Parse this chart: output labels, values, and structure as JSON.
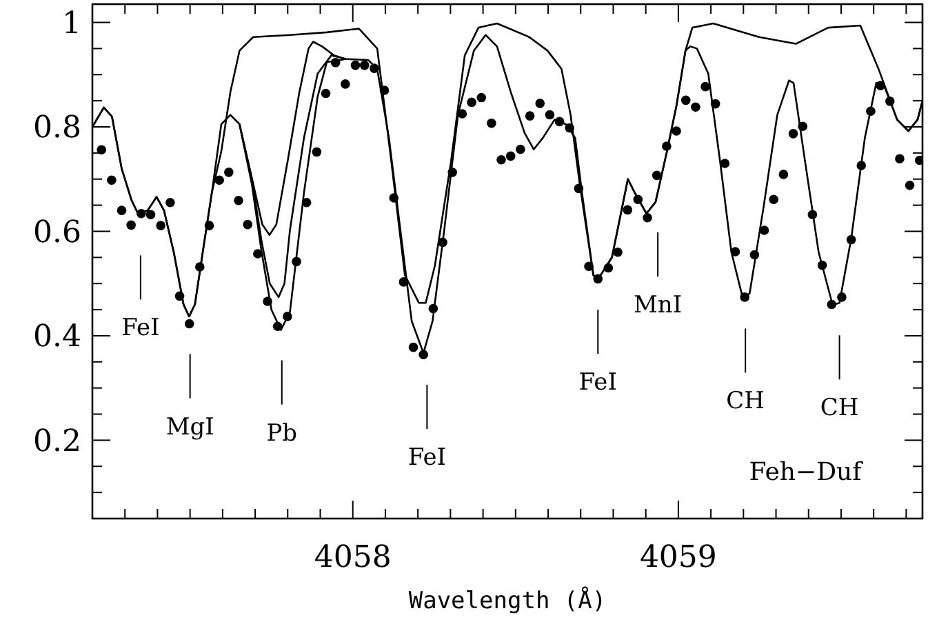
{
  "chart_data": {
    "type": "line",
    "xlabel": "Wavelength (Å)",
    "xlim": [
      4057.2,
      4059.75
    ],
    "xticks": [
      {
        "value": 4057.3,
        "label": null
      },
      {
        "value": 4057.4,
        "label": null
      },
      {
        "value": 4057.5,
        "label": null
      },
      {
        "value": 4057.6,
        "label": null
      },
      {
        "value": 4057.7,
        "label": null
      },
      {
        "value": 4057.8,
        "label": null
      },
      {
        "value": 4057.9,
        "label": null
      },
      4058,
      {
        "value": 4058.1,
        "label": null
      },
      {
        "value": 4058.2,
        "label": null
      },
      {
        "value": 4058.3,
        "label": null
      },
      {
        "value": 4058.4,
        "label": null
      },
      {
        "value": 4058.5,
        "label": null
      },
      {
        "value": 4058.6,
        "label": null
      },
      {
        "value": 4058.7,
        "label": null
      },
      {
        "value": 4058.8,
        "label": null
      },
      {
        "value": 4058.9,
        "label": null
      },
      4059,
      {
        "value": 4059.1,
        "label": null
      },
      {
        "value": 4059.2,
        "label": null
      },
      {
        "value": 4059.3,
        "label": null
      },
      {
        "value": 4059.4,
        "label": null
      },
      {
        "value": 4059.5,
        "label": null
      },
      {
        "value": 4059.6,
        "label": null
      },
      {
        "value": 4059.7,
        "label": null
      }
    ],
    "ylim": [
      0.05,
      1.035
    ],
    "yticks": [
      {
        "value": 0.05,
        "label": null
      },
      {
        "value": 0.1,
        "label": null
      },
      {
        "value": 0.15,
        "label": null
      },
      0.2,
      {
        "value": 0.25,
        "label": null
      },
      {
        "value": 0.3,
        "label": null
      },
      {
        "value": 0.35,
        "label": null
      },
      0.4,
      {
        "value": 0.45,
        "label": null
      },
      {
        "value": 0.5,
        "label": null
      },
      {
        "value": 0.55,
        "label": null
      },
      0.6,
      {
        "value": 0.65,
        "label": null
      },
      {
        "value": 0.7,
        "label": null
      },
      {
        "value": 0.75,
        "label": null
      },
      0.8,
      {
        "value": 0.85,
        "label": null
      },
      {
        "value": 0.9,
        "label": null
      },
      {
        "value": 0.95,
        "label": null
      },
      1
    ],
    "grid": false,
    "line_style": "solid",
    "series": [
      {
        "color": "#000000",
        "x": [
          4057.2,
          4057.235,
          4057.26,
          4057.29,
          4057.32,
          4057.34,
          4057.37,
          4057.397,
          4057.42,
          4057.45,
          4057.48,
          4057.497,
          4057.515,
          4057.539,
          4057.567,
          4057.596,
          4057.624,
          4057.652,
          4057.694,
          4057.807,
          4057.92,
          4058.019,
          4058.075,
          4058.118,
          4058.16,
          4058.203,
          4058.224,
          4058.252,
          4058.302,
          4058.344,
          4058.386,
          4058.443,
          4058.542,
          4058.598,
          4058.641,
          4058.669,
          4058.697,
          4058.739,
          4058.753,
          4058.796,
          4058.845,
          4058.866,
          4058.902,
          4058.93,
          4058.965,
          4058.994,
          4059.022,
          4059.043,
          4059.107,
          4059.248,
          4059.361,
          4059.46,
          4059.559,
          4059.615,
          4059.672,
          4059.707,
          4059.735,
          4059.75
        ],
        "values": [
          0.8,
          0.837,
          0.82,
          0.72,
          0.66,
          0.634,
          0.64,
          0.666,
          0.64,
          0.56,
          0.46,
          0.437,
          0.46,
          0.56,
          0.674,
          0.753,
          0.867,
          0.946,
          0.972,
          0.976,
          0.981,
          0.988,
          0.95,
          0.735,
          0.516,
          0.463,
          0.463,
          0.534,
          0.735,
          0.937,
          0.99,
          0.998,
          0.972,
          0.946,
          0.911,
          0.823,
          0.691,
          0.516,
          0.508,
          0.55,
          0.7,
          0.674,
          0.634,
          0.656,
          0.753,
          0.84,
          0.946,
          0.99,
          0.998,
          0.972,
          0.959,
          0.99,
          0.994,
          0.911,
          0.814,
          0.792,
          0.814,
          0.85
        ]
      },
      {
        "color": "#000000",
        "x": [
          4057.2,
          4057.235,
          4057.26,
          4057.29,
          4057.32,
          4057.34,
          4057.37,
          4057.397,
          4057.42,
          4057.45,
          4057.48,
          4057.497,
          4057.515,
          4057.539,
          4057.567,
          4057.596,
          4057.624,
          4057.652,
          4057.694,
          4057.722,
          4057.744,
          4057.765,
          4057.8,
          4057.836,
          4057.864,
          4057.878,
          4057.906,
          4057.942,
          4057.977,
          4058.047,
          4058.075,
          4058.111,
          4058.146,
          4058.181,
          4058.217,
          4058.245,
          4058.281,
          4058.323,
          4058.372,
          4058.408,
          4058.443,
          4058.485,
          4058.528,
          4058.556,
          4058.584,
          4058.62,
          4058.655,
          4058.683,
          4058.704,
          4058.739,
          4058.753,
          4058.796,
          4058.845,
          4058.866,
          4058.902,
          4058.93,
          4058.965,
          4058.994,
          4059.022,
          4059.036,
          4059.057,
          4059.092,
          4059.128,
          4059.163,
          4059.198,
          4059.219,
          4059.262,
          4059.304,
          4059.34,
          4059.354,
          4059.389,
          4059.431,
          4059.474,
          4059.495,
          4059.531,
          4059.573,
          4059.608,
          4059.629,
          4059.672,
          4059.707,
          4059.735,
          4059.75
        ],
        "values": [
          0.8,
          0.837,
          0.82,
          0.72,
          0.66,
          0.634,
          0.64,
          0.666,
          0.64,
          0.56,
          0.46,
          0.437,
          0.46,
          0.56,
          0.674,
          0.805,
          0.823,
          0.805,
          0.691,
          0.613,
          0.593,
          0.613,
          0.735,
          0.867,
          0.95,
          0.963,
          0.954,
          0.937,
          0.93,
          0.928,
          0.911,
          0.779,
          0.603,
          0.428,
          0.367,
          0.428,
          0.603,
          0.823,
          0.946,
          0.976,
          0.954,
          0.867,
          0.788,
          0.757,
          0.779,
          0.814,
          0.805,
          0.779,
          0.674,
          0.516,
          0.508,
          0.55,
          0.7,
          0.674,
          0.634,
          0.656,
          0.753,
          0.84,
          0.946,
          0.954,
          0.95,
          0.902,
          0.735,
          0.56,
          0.472,
          0.481,
          0.647,
          0.823,
          0.889,
          0.884,
          0.735,
          0.56,
          0.459,
          0.463,
          0.586,
          0.779,
          0.884,
          0.884,
          0.814,
          0.792,
          0.814,
          0.85
        ]
      },
      {
        "color": "#000000",
        "x": [
          4057.652,
          4057.69,
          4057.72,
          4057.745,
          4057.772,
          4057.79,
          4057.807,
          4057.85,
          4057.892,
          4057.934,
          4057.977
        ],
        "values": [
          0.805,
          0.7,
          0.58,
          0.5,
          0.474,
          0.5,
          0.603,
          0.779,
          0.902,
          0.937,
          0.93
        ]
      },
      {
        "color": "#000000",
        "x": [
          4057.652,
          4057.69,
          4057.72,
          4057.75,
          4057.779,
          4057.807,
          4057.85,
          4057.892,
          4057.92,
          4057.963,
          4057.977
        ],
        "values": [
          0.805,
          0.69,
          0.56,
          0.45,
          0.411,
          0.446,
          0.674,
          0.858,
          0.924,
          0.928,
          0.93
        ]
      },
      {
        "type": "scatter",
        "color": "#000000",
        "marker": "circle",
        "x": [
          4057.228,
          4057.259,
          4057.29,
          4057.319,
          4057.35,
          4057.379,
          4057.41,
          4057.439,
          4057.468,
          4057.498,
          4057.53,
          4057.559,
          4057.59,
          4057.619,
          4057.649,
          4057.677,
          4057.708,
          4057.738,
          4057.769,
          4057.799,
          4057.827,
          4057.858,
          4057.889,
          4057.917,
          4057.947,
          4057.977,
          4058.008,
          4058.036,
          4058.066,
          4058.097,
          4058.126,
          4058.156,
          4058.186,
          4058.217,
          4058.247,
          4058.276,
          4058.306,
          4058.336,
          4058.365,
          4058.395,
          4058.426,
          4058.456,
          4058.485,
          4058.515,
          4058.544,
          4058.575,
          4058.605,
          4058.635,
          4058.666,
          4058.694,
          4058.725,
          4058.753,
          4058.785,
          4058.814,
          4058.844,
          4058.876,
          4058.905,
          4058.934,
          4058.964,
          4058.994,
          4059.023,
          4059.053,
          4059.083,
          4059.114,
          4059.143,
          4059.175,
          4059.204,
          4059.234,
          4059.264,
          4059.293,
          4059.323,
          4059.353,
          4059.382,
          4059.412,
          4059.442,
          4059.471,
          4059.502,
          4059.531,
          4059.562,
          4059.591,
          4059.621,
          4059.65,
          4059.68,
          4059.711,
          4059.741
        ],
        "values": [
          0.756,
          0.698,
          0.64,
          0.612,
          0.634,
          0.632,
          0.611,
          0.655,
          0.476,
          0.423,
          0.532,
          0.611,
          0.698,
          0.713,
          0.659,
          0.613,
          0.557,
          0.466,
          0.418,
          0.437,
          0.542,
          0.655,
          0.752,
          0.864,
          0.923,
          0.882,
          0.918,
          0.918,
          0.912,
          0.87,
          0.664,
          0.503,
          0.378,
          0.364,
          0.452,
          0.579,
          0.713,
          0.825,
          0.847,
          0.856,
          0.807,
          0.737,
          0.744,
          0.757,
          0.821,
          0.845,
          0.823,
          0.81,
          0.798,
          0.682,
          0.533,
          0.509,
          0.53,
          0.56,
          0.641,
          0.661,
          0.626,
          0.707,
          0.763,
          0.792,
          0.851,
          0.838,
          0.877,
          0.844,
          0.73,
          0.561,
          0.474,
          0.555,
          0.602,
          0.661,
          0.709,
          0.787,
          0.801,
          0.632,
          0.535,
          0.46,
          0.474,
          0.584,
          0.726,
          0.83,
          0.879,
          0.849,
          0.739,
          0.688,
          0.736
        ]
      }
    ],
    "ref_lines": [
      {
        "axis": "x",
        "value": 4057.348,
        "label": "FeI"
      },
      {
        "axis": "x",
        "value": 4057.5,
        "label": "MgI"
      },
      {
        "axis": "x",
        "value": 4057.782,
        "label": "Pb"
      },
      {
        "axis": "x",
        "value": 4058.228,
        "label": "FeI"
      },
      {
        "axis": "x",
        "value": 4058.753,
        "label": "FeI"
      },
      {
        "axis": "x",
        "value": 4058.937,
        "label": "MnI"
      },
      {
        "axis": "x",
        "value": 4059.206,
        "label": "CH"
      },
      {
        "axis": "x",
        "value": 4059.495,
        "label": "CH"
      }
    ],
    "annotations": [
      "Feh−Duf"
    ]
  }
}
